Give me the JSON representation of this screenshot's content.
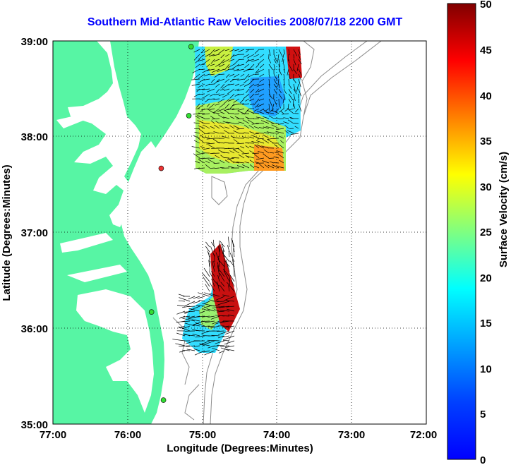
{
  "title": "Southern Mid-Atlantic Raw Velocities 2008/07/18 2200 GMT",
  "x_axis": {
    "label": "Longitude (Degrees:Minutes)",
    "ticks": [
      "77:00",
      "76:00",
      "75:00",
      "74:00",
      "73:00",
      "72:00"
    ]
  },
  "y_axis": {
    "label": "Latitude (Degrees:Minutes)",
    "ticks": [
      "39:00",
      "38:00",
      "37:00",
      "36:00",
      "35:00"
    ]
  },
  "colorbar": {
    "label": "Surface Velocity (cm/s)",
    "ticks": [
      "50",
      "45",
      "40",
      "35",
      "30",
      "25",
      "20",
      "15",
      "10",
      "5",
      "0"
    ],
    "min": 0,
    "max": 50,
    "colormap": "jet"
  },
  "colors": {
    "land": "#57f5a4",
    "water": "#ffffff",
    "bathymetry": "#8c8c8c",
    "station_active": "#33dd33",
    "station_inactive": "#ee3333",
    "title": "#0000ff"
  },
  "stations": [
    {
      "status": "active",
      "lon": -75.15,
      "lat": 38.94
    },
    {
      "status": "active",
      "lon": -75.18,
      "lat": 38.22
    },
    {
      "status": "inactive",
      "lon": -75.55,
      "lat": 37.67
    },
    {
      "status": "active",
      "lon": -75.68,
      "lat": 36.17
    },
    {
      "status": "active",
      "lon": -75.52,
      "lat": 35.25
    }
  ]
}
